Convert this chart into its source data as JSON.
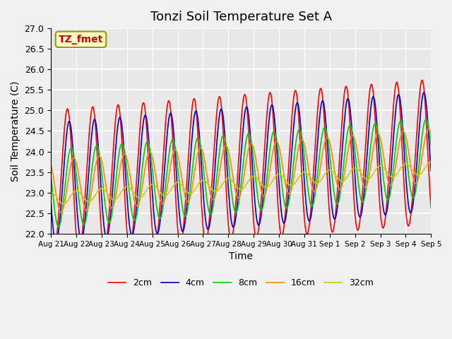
{
  "title": "Tonzi Soil Temperature Set A",
  "xlabel": "Time",
  "ylabel": "Soil Temperature (C)",
  "annotation": "TZ_fmet",
  "ylim": [
    22.0,
    27.0
  ],
  "yticks": [
    22.0,
    22.5,
    23.0,
    23.5,
    24.0,
    24.5,
    25.0,
    25.5,
    26.0,
    26.5,
    27.0
  ],
  "xtick_labels": [
    "Aug 21",
    "Aug 22",
    "Aug 23",
    "Aug 24",
    "Aug 25",
    "Aug 26",
    "Aug 27",
    "Aug 28",
    "Aug 29",
    "Aug 30",
    "Aug 31",
    "Sep 1",
    "Sep 2",
    "Sep 3",
    "Sep 4",
    "Sep 5"
  ],
  "colors": {
    "2cm": "#ff0000",
    "4cm": "#0000cc",
    "8cm": "#00cc00",
    "16cm": "#ff8800",
    "32cm": "#cccc00"
  },
  "legend_entries": [
    "2cm",
    "4cm",
    "8cm",
    "16cm",
    "32cm"
  ],
  "background_color": "#e8e8e8",
  "plot_bg_color": "#e8e8e8",
  "grid_color": "#ffffff",
  "title_fontsize": 13,
  "axis_fontsize": 10
}
